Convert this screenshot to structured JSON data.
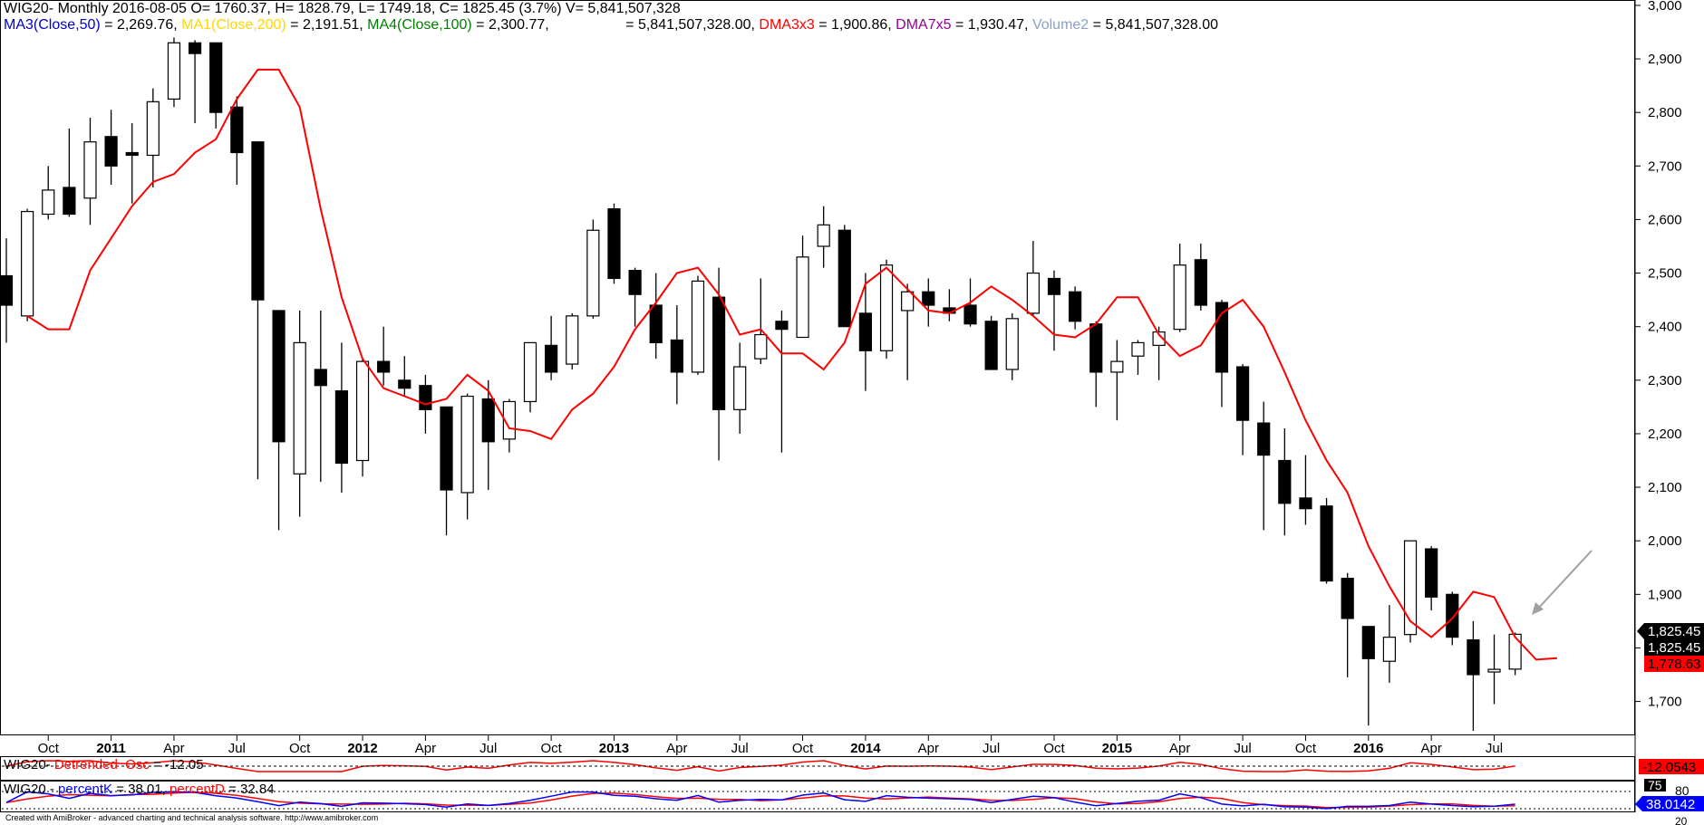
{
  "header": {
    "line1": "WIG20- Monthly 2016-08-05 O= 1760.37, H= 1828.79, L= 1749.18, C= 1825.45 (3.7%) V= 5,841,507,328",
    "ma3_label": "MA3(Close,50)",
    "ma3_value": " = 2,269.76, ",
    "ma1_label": "MA1(Close,200)",
    "ma1_value": " = 2,191.51, ",
    "ma4_label": "MA4(Close,100)",
    "ma4_value": " = 2,300.77,                   = 5,841,507,328.00, ",
    "dma3_label": "DMA3x3",
    "dma3_value": " = 1,900.86, ",
    "dma7_label": "DMA7x5",
    "dma7_value": " = 1,930.47, ",
    "vol_label": "Volume2",
    "vol_value": " = 5,841,507,328.00"
  },
  "colors": {
    "ma3": "#0000cc",
    "ma1": "#ffd700",
    "ma4": "#008000",
    "dma3": "#ff0000",
    "dma7": "#990099",
    "volume": "#8aa2c8",
    "red": "#ff0000",
    "blue": "#0000ff",
    "arrow": "#a0a0a0"
  },
  "osc_panel": {
    "prefix": "WIG20- ",
    "label": "Detrended  Osc",
    "value_text": " = -12.05",
    "right_tag": "-12.0543"
  },
  "stoch_panel": {
    "prefix": "WIG20 - ",
    "k_label": "percentK",
    "k_value": " = 38.01, ",
    "d_label": "percentD",
    "d_value": " = 32.84",
    "level_75": "75",
    "level_80": "80",
    "level_20": "20",
    "right_tag": "38.0142"
  },
  "price_tags": {
    "close1": "1,825.45",
    "close2": "1,825.45",
    "dma": "1,778.63"
  },
  "footer": "Created with AmiBroker - advanced charting and technical analysis software. http://www.amibroker.com",
  "chart_data": {
    "type": "candlestick",
    "title": "WIG20- Monthly",
    "ylim": [
      1635,
      3010
    ],
    "y_ticks": [
      1700,
      1800,
      1900,
      2000,
      2100,
      2200,
      2300,
      2400,
      2500,
      2600,
      2700,
      2800,
      2900,
      3000
    ],
    "y_tick_labels": [
      "1,700",
      "1,800",
      "1,900",
      "2,000",
      "2,100",
      "2,200",
      "2,300",
      "2,400",
      "2,500",
      "2,600",
      "2,700",
      "2,800",
      "2,900",
      "3,000"
    ],
    "x_tick_labels": [
      {
        "i": 2,
        "text": "Oct",
        "bold": false
      },
      {
        "i": 5,
        "text": "2011",
        "bold": true
      },
      {
        "i": 8,
        "text": "Apr",
        "bold": false
      },
      {
        "i": 11,
        "text": "Jul",
        "bold": false
      },
      {
        "i": 14,
        "text": "Oct",
        "bold": false
      },
      {
        "i": 17,
        "text": "2012",
        "bold": true
      },
      {
        "i": 20,
        "text": "Apr",
        "bold": false
      },
      {
        "i": 23,
        "text": "Jul",
        "bold": false
      },
      {
        "i": 26,
        "text": "Oct",
        "bold": false
      },
      {
        "i": 29,
        "text": "2013",
        "bold": true
      },
      {
        "i": 32,
        "text": "Apr",
        "bold": false
      },
      {
        "i": 35,
        "text": "Jul",
        "bold": false
      },
      {
        "i": 38,
        "text": "Oct",
        "bold": false
      },
      {
        "i": 41,
        "text": "2014",
        "bold": true
      },
      {
        "i": 44,
        "text": "Apr",
        "bold": false
      },
      {
        "i": 47,
        "text": "Jul",
        "bold": false
      },
      {
        "i": 50,
        "text": "Oct",
        "bold": false
      },
      {
        "i": 53,
        "text": "2015",
        "bold": true
      },
      {
        "i": 56,
        "text": "Apr",
        "bold": false
      },
      {
        "i": 59,
        "text": "Jul",
        "bold": false
      },
      {
        "i": 62,
        "text": "Oct",
        "bold": false
      },
      {
        "i": 65,
        "text": "2016",
        "bold": true
      },
      {
        "i": 68,
        "text": "Apr",
        "bold": false
      },
      {
        "i": 71,
        "text": "Jul",
        "bold": false
      }
    ],
    "candles": [
      {
        "date": "2010-08",
        "o": 2495,
        "h": 2565,
        "l": 2370,
        "c": 2440
      },
      {
        "date": "2010-09",
        "o": 2420,
        "h": 2620,
        "l": 2410,
        "c": 2615
      },
      {
        "date": "2010-10",
        "o": 2610,
        "h": 2700,
        "l": 2600,
        "c": 2655
      },
      {
        "date": "2010-11",
        "o": 2660,
        "h": 2770,
        "l": 2605,
        "c": 2610
      },
      {
        "date": "2010-12",
        "o": 2640,
        "h": 2790,
        "l": 2590,
        "c": 2745
      },
      {
        "date": "2011-01",
        "o": 2755,
        "h": 2805,
        "l": 2665,
        "c": 2700
      },
      {
        "date": "2011-02",
        "o": 2725,
        "h": 2780,
        "l": 2630,
        "c": 2720
      },
      {
        "date": "2011-03",
        "o": 2720,
        "h": 2845,
        "l": 2660,
        "c": 2820
      },
      {
        "date": "2011-04",
        "o": 2825,
        "h": 2940,
        "l": 2810,
        "c": 2930
      },
      {
        "date": "2011-05",
        "o": 2930,
        "h": 2935,
        "l": 2780,
        "c": 2910
      },
      {
        "date": "2011-06",
        "o": 2930,
        "h": 2930,
        "l": 2770,
        "c": 2800
      },
      {
        "date": "2011-07",
        "o": 2810,
        "h": 2830,
        "l": 2665,
        "c": 2725
      },
      {
        "date": "2011-08",
        "o": 2745,
        "h": 2745,
        "l": 2115,
        "c": 2450
      },
      {
        "date": "2011-09",
        "o": 2430,
        "h": 2430,
        "l": 2020,
        "c": 2185
      },
      {
        "date": "2011-10",
        "o": 2125,
        "h": 2430,
        "l": 2045,
        "c": 2370
      },
      {
        "date": "2011-11",
        "o": 2320,
        "h": 2430,
        "l": 2110,
        "c": 2290
      },
      {
        "date": "2011-12",
        "o": 2280,
        "h": 2370,
        "l": 2090,
        "c": 2145
      },
      {
        "date": "2012-01",
        "o": 2150,
        "h": 2340,
        "l": 2120,
        "c": 2335
      },
      {
        "date": "2012-02",
        "o": 2335,
        "h": 2400,
        "l": 2290,
        "c": 2315
      },
      {
        "date": "2012-03",
        "o": 2300,
        "h": 2345,
        "l": 2270,
        "c": 2285
      },
      {
        "date": "2012-04",
        "o": 2290,
        "h": 2310,
        "l": 2200,
        "c": 2245
      },
      {
        "date": "2012-05",
        "o": 2250,
        "h": 2250,
        "l": 2010,
        "c": 2095
      },
      {
        "date": "2012-06",
        "o": 2090,
        "h": 2275,
        "l": 2040,
        "c": 2270
      },
      {
        "date": "2012-07",
        "o": 2265,
        "h": 2300,
        "l": 2095,
        "c": 2185
      },
      {
        "date": "2012-08",
        "o": 2190,
        "h": 2265,
        "l": 2165,
        "c": 2260
      },
      {
        "date": "2012-09",
        "o": 2260,
        "h": 2370,
        "l": 2240,
        "c": 2370
      },
      {
        "date": "2012-10",
        "o": 2365,
        "h": 2420,
        "l": 2300,
        "c": 2315
      },
      {
        "date": "2012-11",
        "o": 2330,
        "h": 2425,
        "l": 2320,
        "c": 2420
      },
      {
        "date": "2012-12",
        "o": 2420,
        "h": 2600,
        "l": 2415,
        "c": 2580
      },
      {
        "date": "2013-01",
        "o": 2620,
        "h": 2630,
        "l": 2480,
        "c": 2490
      },
      {
        "date": "2013-02",
        "o": 2505,
        "h": 2510,
        "l": 2400,
        "c": 2460
      },
      {
        "date": "2013-03",
        "o": 2440,
        "h": 2500,
        "l": 2340,
        "c": 2370
      },
      {
        "date": "2013-04",
        "o": 2375,
        "h": 2440,
        "l": 2255,
        "c": 2315
      },
      {
        "date": "2013-05",
        "o": 2315,
        "h": 2495,
        "l": 2310,
        "c": 2485
      },
      {
        "date": "2013-06",
        "o": 2455,
        "h": 2510,
        "l": 2150,
        "c": 2245
      },
      {
        "date": "2013-07",
        "o": 2245,
        "h": 2370,
        "l": 2200,
        "c": 2325
      },
      {
        "date": "2013-08",
        "o": 2340,
        "h": 2490,
        "l": 2330,
        "c": 2385
      },
      {
        "date": "2013-09",
        "o": 2410,
        "h": 2430,
        "l": 2165,
        "c": 2395
      },
      {
        "date": "2013-10",
        "o": 2380,
        "h": 2570,
        "l": 2380,
        "c": 2530
      },
      {
        "date": "2013-11",
        "o": 2550,
        "h": 2625,
        "l": 2510,
        "c": 2590
      },
      {
        "date": "2013-12",
        "o": 2580,
        "h": 2590,
        "l": 2400,
        "c": 2400
      },
      {
        "date": "2014-01",
        "o": 2425,
        "h": 2500,
        "l": 2280,
        "c": 2355
      },
      {
        "date": "2014-02",
        "o": 2355,
        "h": 2525,
        "l": 2340,
        "c": 2515
      },
      {
        "date": "2014-03",
        "o": 2430,
        "h": 2480,
        "l": 2300,
        "c": 2465
      },
      {
        "date": "2014-04",
        "o": 2465,
        "h": 2490,
        "l": 2400,
        "c": 2440
      },
      {
        "date": "2014-05",
        "o": 2435,
        "h": 2470,
        "l": 2410,
        "c": 2425
      },
      {
        "date": "2014-06",
        "o": 2440,
        "h": 2490,
        "l": 2400,
        "c": 2405
      },
      {
        "date": "2014-07",
        "o": 2410,
        "h": 2420,
        "l": 2320,
        "c": 2320
      },
      {
        "date": "2014-08",
        "o": 2320,
        "h": 2425,
        "l": 2300,
        "c": 2415
      },
      {
        "date": "2014-09",
        "o": 2425,
        "h": 2560,
        "l": 2420,
        "c": 2500
      },
      {
        "date": "2014-10",
        "o": 2490,
        "h": 2505,
        "l": 2355,
        "c": 2460
      },
      {
        "date": "2014-11",
        "o": 2465,
        "h": 2475,
        "l": 2395,
        "c": 2410
      },
      {
        "date": "2014-12",
        "o": 2405,
        "h": 2410,
        "l": 2250,
        "c": 2315
      },
      {
        "date": "2015-01",
        "o": 2315,
        "h": 2375,
        "l": 2225,
        "c": 2335
      },
      {
        "date": "2015-02",
        "o": 2345,
        "h": 2375,
        "l": 2310,
        "c": 2370
      },
      {
        "date": "2015-03",
        "o": 2365,
        "h": 2400,
        "l": 2300,
        "c": 2390
      },
      {
        "date": "2015-04",
        "o": 2395,
        "h": 2555,
        "l": 2390,
        "c": 2515
      },
      {
        "date": "2015-05",
        "o": 2525,
        "h": 2555,
        "l": 2430,
        "c": 2440
      },
      {
        "date": "2015-06",
        "o": 2445,
        "h": 2450,
        "l": 2250,
        "c": 2315
      },
      {
        "date": "2015-07",
        "o": 2325,
        "h": 2330,
        "l": 2160,
        "c": 2225
      },
      {
        "date": "2015-08",
        "o": 2220,
        "h": 2260,
        "l": 2020,
        "c": 2160
      },
      {
        "date": "2015-09",
        "o": 2150,
        "h": 2210,
        "l": 2010,
        "c": 2070
      },
      {
        "date": "2015-10",
        "o": 2080,
        "h": 2160,
        "l": 2030,
        "c": 2060
      },
      {
        "date": "2015-11",
        "o": 2065,
        "h": 2080,
        "l": 1920,
        "c": 1925
      },
      {
        "date": "2015-12",
        "o": 1930,
        "h": 1940,
        "l": 1745,
        "c": 1855
      },
      {
        "date": "2016-01",
        "o": 1840,
        "h": 1840,
        "l": 1655,
        "c": 1780
      },
      {
        "date": "2016-02",
        "o": 1775,
        "h": 1880,
        "l": 1735,
        "c": 1820
      },
      {
        "date": "2016-03",
        "o": 1825,
        "h": 2000,
        "l": 1810,
        "c": 2000
      },
      {
        "date": "2016-04",
        "o": 1985,
        "h": 1990,
        "l": 1870,
        "c": 1895
      },
      {
        "date": "2016-05",
        "o": 1900,
        "h": 1905,
        "l": 1805,
        "c": 1820
      },
      {
        "date": "2016-06",
        "o": 1815,
        "h": 1850,
        "l": 1645,
        "c": 1750
      },
      {
        "date": "2016-07",
        "o": 1755,
        "h": 1825,
        "l": 1695,
        "c": 1760
      },
      {
        "date": "2016-08",
        "o": 1760.37,
        "h": 1828.79,
        "l": 1749.18,
        "c": 1825.45
      }
    ],
    "dma_series": {
      "name": "DMA3x3",
      "points": [
        {
          "i": 1,
          "v": 2420
        },
        {
          "i": 2,
          "v": 2395
        },
        {
          "i": 3,
          "v": 2395
        },
        {
          "i": 4,
          "v": 2505
        },
        {
          "i": 5,
          "v": 2565
        },
        {
          "i": 6,
          "v": 2625
        },
        {
          "i": 7,
          "v": 2670
        },
        {
          "i": 8,
          "v": 2685
        },
        {
          "i": 9,
          "v": 2725
        },
        {
          "i": 10,
          "v": 2750
        },
        {
          "i": 11,
          "v": 2825
        },
        {
          "i": 12,
          "v": 2880
        },
        {
          "i": 13,
          "v": 2880
        },
        {
          "i": 14,
          "v": 2810
        },
        {
          "i": 15,
          "v": 2620
        },
        {
          "i": 16,
          "v": 2455
        },
        {
          "i": 17,
          "v": 2340
        },
        {
          "i": 18,
          "v": 2285
        },
        {
          "i": 19,
          "v": 2270
        },
        {
          "i": 20,
          "v": 2255
        },
        {
          "i": 21,
          "v": 2265
        },
        {
          "i": 22,
          "v": 2310
        },
        {
          "i": 23,
          "v": 2280
        },
        {
          "i": 24,
          "v": 2210
        },
        {
          "i": 25,
          "v": 2205
        },
        {
          "i": 26,
          "v": 2190
        },
        {
          "i": 27,
          "v": 2245
        },
        {
          "i": 28,
          "v": 2275
        },
        {
          "i": 29,
          "v": 2325
        },
        {
          "i": 30,
          "v": 2395
        },
        {
          "i": 31,
          "v": 2445
        },
        {
          "i": 32,
          "v": 2500
        },
        {
          "i": 33,
          "v": 2510
        },
        {
          "i": 34,
          "v": 2460
        },
        {
          "i": 35,
          "v": 2385
        },
        {
          "i": 36,
          "v": 2395
        },
        {
          "i": 37,
          "v": 2350
        },
        {
          "i": 38,
          "v": 2350
        },
        {
          "i": 39,
          "v": 2320
        },
        {
          "i": 40,
          "v": 2370
        },
        {
          "i": 41,
          "v": 2480
        },
        {
          "i": 42,
          "v": 2510
        },
        {
          "i": 43,
          "v": 2470
        },
        {
          "i": 44,
          "v": 2430
        },
        {
          "i": 45,
          "v": 2425
        },
        {
          "i": 46,
          "v": 2445
        },
        {
          "i": 47,
          "v": 2475
        },
        {
          "i": 48,
          "v": 2450
        },
        {
          "i": 49,
          "v": 2420
        },
        {
          "i": 50,
          "v": 2385
        },
        {
          "i": 51,
          "v": 2380
        },
        {
          "i": 52,
          "v": 2405
        },
        {
          "i": 53,
          "v": 2455
        },
        {
          "i": 54,
          "v": 2455
        },
        {
          "i": 55,
          "v": 2385
        },
        {
          "i": 56,
          "v": 2345
        },
        {
          "i": 57,
          "v": 2365
        },
        {
          "i": 58,
          "v": 2425
        },
        {
          "i": 59,
          "v": 2450
        },
        {
          "i": 60,
          "v": 2400
        },
        {
          "i": 61,
          "v": 2315
        },
        {
          "i": 62,
          "v": 2225
        },
        {
          "i": 63,
          "v": 2150
        },
        {
          "i": 64,
          "v": 2090
        },
        {
          "i": 65,
          "v": 1990
        },
        {
          "i": 66,
          "v": 1915
        },
        {
          "i": 67,
          "v": 1850
        },
        {
          "i": 68,
          "v": 1820
        },
        {
          "i": 69,
          "v": 1855
        },
        {
          "i": 70,
          "v": 1905
        },
        {
          "i": 71,
          "v": 1895
        },
        {
          "i": 72,
          "v": 1820
        },
        {
          "i": 73,
          "v": 1778
        },
        {
          "i": 74,
          "v": 1781
        }
      ]
    }
  }
}
